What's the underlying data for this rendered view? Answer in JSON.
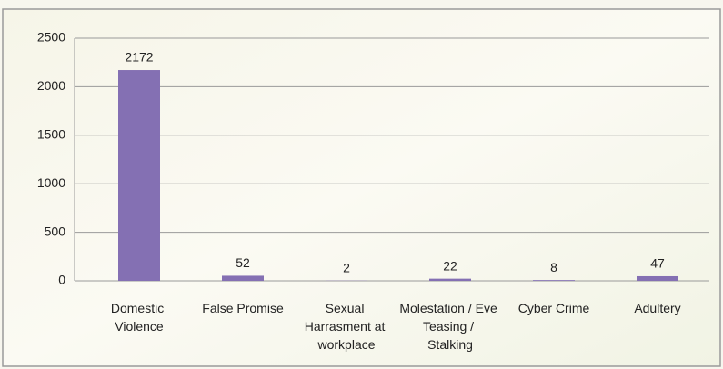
{
  "chart_data": {
    "type": "bar",
    "categories": [
      "Domestic Violence",
      "False Promise",
      "Sexual Harrasment at workplace",
      "Molestation / Eve Teasing / Stalking",
      "Cyber Crime",
      "Adultery"
    ],
    "values": [
      2172,
      52,
      2,
      22,
      8,
      47
    ],
    "color": "#8470b3",
    "ylim": [
      0,
      2500
    ],
    "yticks": [
      0,
      500,
      1000,
      1500,
      2000,
      2500
    ],
    "grid": true
  }
}
